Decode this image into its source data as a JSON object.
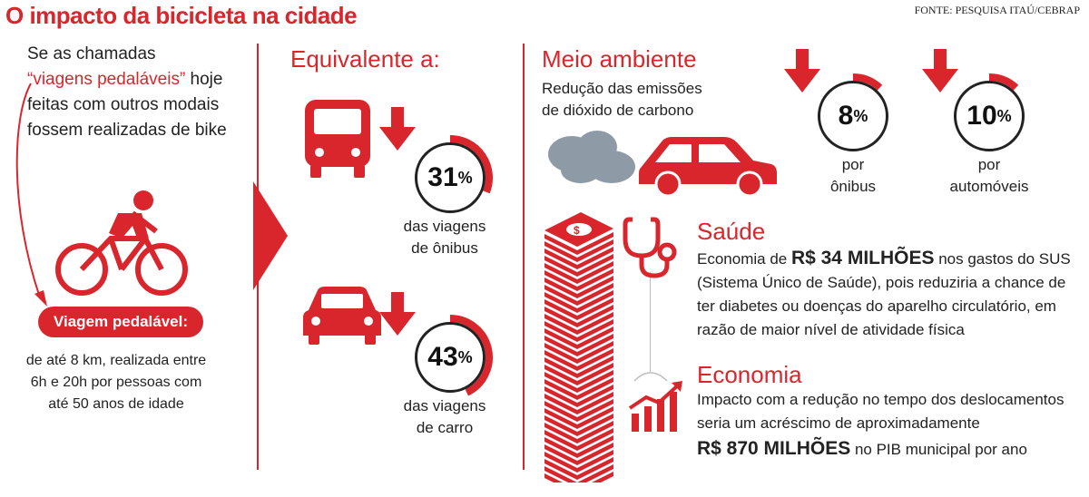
{
  "title": "O impacto da bicicleta na cidade",
  "source": "FONTE: PESQUISA ITAÚ/CEBRAP",
  "intro": {
    "line1": "Se as chamadas",
    "highlight": "“viagens pedaláveis”",
    "line2_rest": " hoje",
    "line3": "feitas com outros modais",
    "line4": "fossem realizadas de bike"
  },
  "definition": {
    "label": "Viagem pedalável:",
    "description": "de até 8 km, realizada entre 6h e 20h por pessoas com até 50 anos de idade"
  },
  "equivalente": {
    "heading": "Equivalente a:",
    "items": [
      {
        "value": "31",
        "unit": "%",
        "fraction": 0.31,
        "caption1": "das viagens",
        "caption2": "de ônibus",
        "icon": "bus-icon"
      },
      {
        "value": "43",
        "unit": "%",
        "fraction": 0.43,
        "caption1": "das viagens",
        "caption2": "de carro",
        "icon": "car-icon"
      }
    ]
  },
  "meio_ambiente": {
    "heading": "Meio ambiente",
    "subtitle1": "Redução das emissões",
    "subtitle2": "de dióxido de carbono",
    "items": [
      {
        "value": "8",
        "unit": "%",
        "fraction": 0.08,
        "caption1": "por",
        "caption2": "ônibus"
      },
      {
        "value": "10",
        "unit": "%",
        "fraction": 0.1,
        "caption1": "por",
        "caption2": "automóveis"
      }
    ]
  },
  "saude": {
    "heading": "Saúde",
    "text_pre": "Economia de ",
    "amount": "R$ 34 MILHÕES",
    "text_post": " nos gastos do SUS",
    "line2": "(Sistema Único de Saúde), pois reduziria a chance de",
    "line3": "ter diabetes ou doenças do aparelho circulatório, em",
    "line4": "razão de maior nível de atividade física"
  },
  "economia": {
    "heading": "Economia",
    "line1": "Impacto com a redução no tempo dos deslocamentos",
    "line2": "seria um acréscimo de aproximadamente",
    "amount": "R$ 870 MILHÕES",
    "text_post": " no PIB municipal por ano"
  },
  "colors": {
    "accent": "#d9262c",
    "smoke": "#8e9ba6",
    "text": "#222222"
  }
}
